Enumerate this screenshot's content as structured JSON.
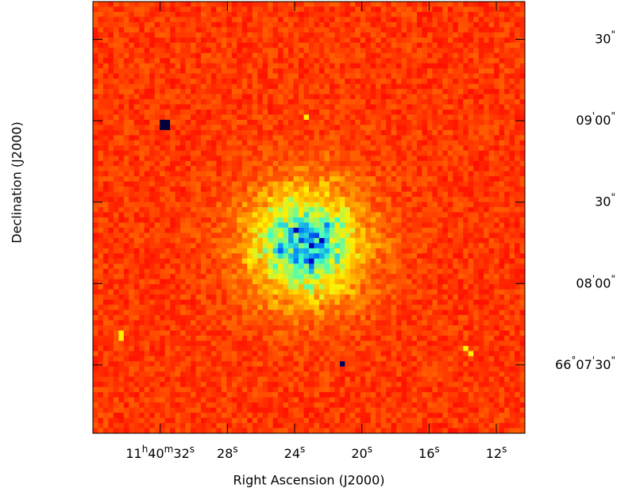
{
  "chart_data": {
    "type": "image",
    "xlabel": "Right Ascension (J2000)",
    "ylabel": "Declination (J2000)",
    "xlim": [
      36.0,
      10.3
    ],
    "xticks": [
      {
        "value": 32,
        "label": "11h40m32s"
      },
      {
        "value": 28,
        "label": "28s"
      },
      {
        "value": 24,
        "label": "24s"
      },
      {
        "value": 20,
        "label": "20s"
      },
      {
        "value": 16,
        "label": "16s"
      },
      {
        "value": 12,
        "label": "12s"
      }
    ],
    "ylim": [
      66.118,
      66.1622
    ],
    "yticks": [
      {
        "value": 66.125,
        "label": "66°07'30\""
      },
      {
        "value": 66.133333,
        "label": "08'00\""
      },
      {
        "value": 66.141667,
        "label": "30\""
      },
      {
        "value": 66.15,
        "label": "09'00\""
      },
      {
        "value": 66.158333,
        "label": "30\""
      }
    ]
  }
}
